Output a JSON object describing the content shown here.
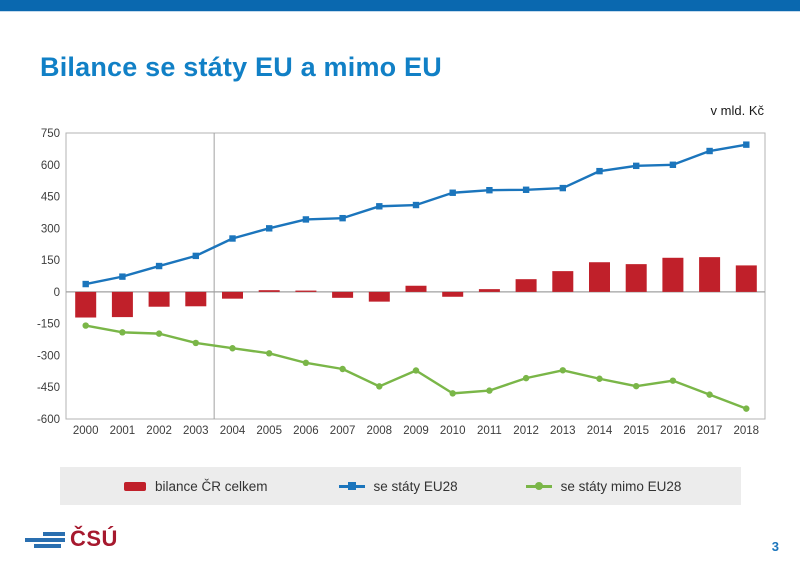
{
  "slide": {
    "title": "Bilance se státy EU a mimo EU",
    "page_number": "3",
    "logo_text": "ČSÚ"
  },
  "colors": {
    "top_bar": "#0a68af",
    "title": "#1180c6",
    "bar_series": "#c0202a",
    "eu_line": "#1b75bc",
    "non_eu_line": "#7ab648",
    "legend_background": "#ececec",
    "axis_text": "#3d3d3d",
    "grid_line": "#a0a0a0",
    "plot_border": "#b3b3b3",
    "page_number": "#1b75bc",
    "logo_red": "#a6192e",
    "logo_blue": "#2a6fb0"
  },
  "legend": {
    "items": [
      {
        "label": "bilance ČR celkem",
        "swatch": "bar"
      },
      {
        "label": "se státy EU28",
        "swatch": "line-square"
      },
      {
        "label": "se státy mimo EU28",
        "swatch": "line-circle"
      }
    ]
  },
  "chart_data": {
    "type": "combo-bar-line",
    "title": "Bilance se státy EU a mimo EU",
    "unit": "v mld. Kč",
    "categories": [
      "2000",
      "2001",
      "2002",
      "2003",
      "2004",
      "2005",
      "2006",
      "2007",
      "2008",
      "2009",
      "2010",
      "2011",
      "2012",
      "2013",
      "2014",
      "2015",
      "2016",
      "2017",
      "2018"
    ],
    "series": [
      {
        "name": "bilance ČR celkem",
        "type": "bar",
        "color": "#c0202a",
        "values": [
          -121,
          -119,
          -70,
          -68,
          -32,
          8,
          3,
          -28,
          -46,
          29,
          -23,
          13,
          60,
          98,
          140,
          131,
          161,
          164,
          125
        ]
      },
      {
        "name": "se státy EU28",
        "type": "line",
        "marker": "square",
        "color": "#1b75bc",
        "values": [
          37,
          72,
          122,
          170,
          252,
          300,
          342,
          348,
          404,
          410,
          468,
          480,
          482,
          490,
          570,
          595,
          600,
          665,
          695
        ]
      },
      {
        "name": "se státy mimo EU28",
        "type": "line",
        "marker": "circle",
        "color": "#7ab648",
        "values": [
          -159,
          -191,
          -197,
          -241,
          -266,
          -290,
          -335,
          -364,
          -446,
          -371,
          -479,
          -466,
          -407,
          -370,
          -410,
          -445,
          -419,
          -485,
          -551
        ]
      }
    ],
    "ylim": [
      -600,
      750
    ],
    "ytick_step": 150,
    "yticks": [
      750,
      600,
      450,
      300,
      150,
      0,
      -150,
      -300,
      -450,
      -600
    ],
    "grid": "outer border, zero line, vertical divider between 2003 and 2004",
    "legend_position": "bottom"
  }
}
